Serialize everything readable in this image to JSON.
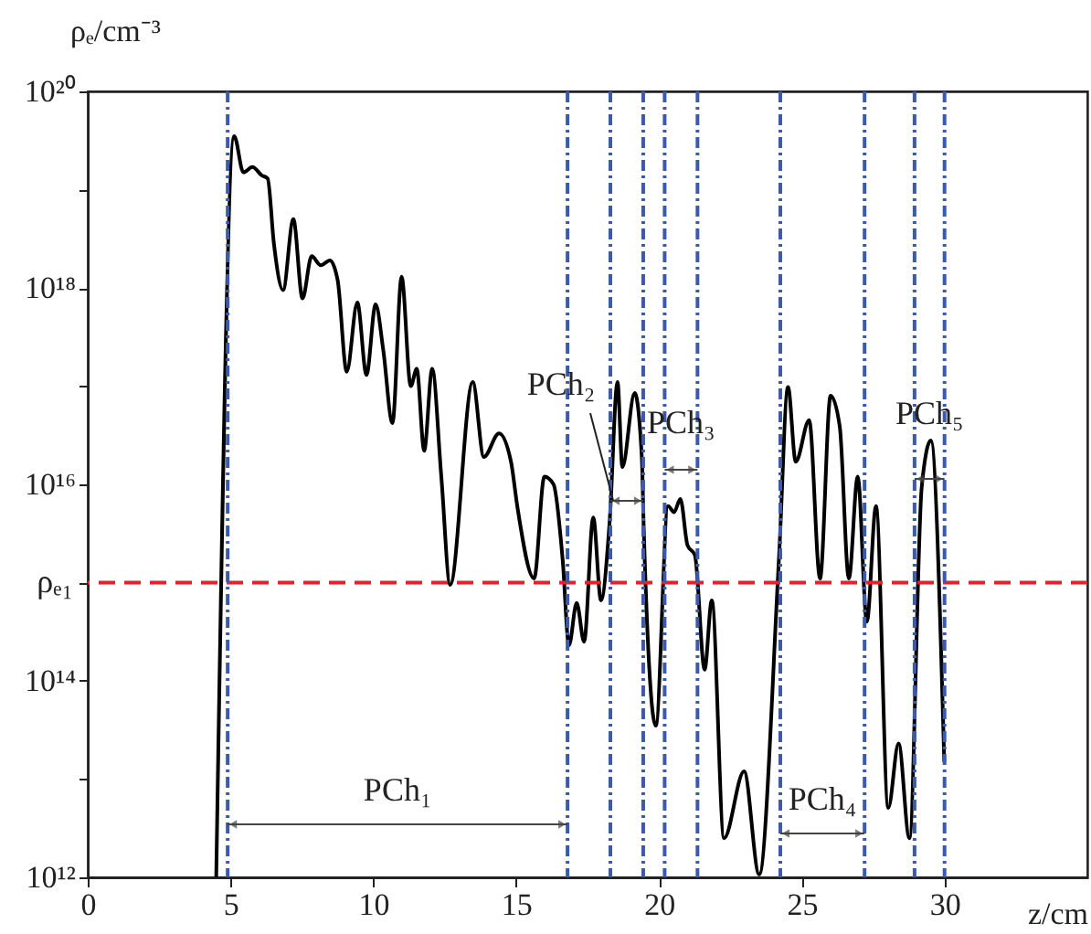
{
  "chart_data": {
    "type": "line",
    "xlabel": "z/cm",
    "ylabel": "ρₑ/cm⁻³",
    "log": "y",
    "grid": false,
    "xlim": [
      0,
      35
    ],
    "ylim": [
      1000000000000.0,
      1e+20
    ],
    "xticks": [
      0,
      5,
      10,
      15,
      20,
      25,
      30
    ],
    "yticks": [
      {
        "value": 1000000000000.0,
        "label": "10¹²"
      },
      {
        "value": 10000000000000.0,
        "label": null
      },
      {
        "value": 100000000000000.0,
        "label": "10¹⁴"
      },
      {
        "value": 1000000000000000.0,
        "label": null
      },
      {
        "value": 1e+16,
        "label": "10¹⁶"
      },
      {
        "value": 1e+17,
        "label": null
      },
      {
        "value": 1e+18,
        "label": "10¹⁸"
      },
      {
        "value": 1e+19,
        "label": null
      },
      {
        "value": 1e+20,
        "label": "10²⁰"
      }
    ],
    "x": [
      4.5,
      5.13,
      5.45,
      5.77,
      6.09,
      6.3,
      6.52,
      6.84,
      7.2,
      7.52,
      7.84,
      8.16,
      8.48,
      8.75,
      9.07,
      9.44,
      9.76,
      10.08,
      10.35,
      10.67,
      10.99,
      11.31,
      11.52,
      11.78,
      12.06,
      12.38,
      12.69,
      13.48,
      13.87,
      14.4,
      14.82,
      15.04,
      15.63,
      15.99,
      16.31,
      16.63,
      16.85,
      17.12,
      17.38,
      17.7,
      17.97,
      18.27,
      18.55,
      18.72,
      19.15,
      19.4,
      19.47,
      19.89,
      20.32,
      20.53,
      20.75,
      21.0,
      21.26,
      21.6,
      21.85,
      22.28,
      22.98,
      23.51,
      24.2,
      24.52,
      24.79,
      25.26,
      25.64,
      26.01,
      26.33,
      26.65,
      26.96,
      27.28,
      27.6,
      28.03,
      28.39,
      28.77,
      29.2,
      29.52,
      29.99
    ],
    "series": [
      {
        "color": "#000000",
        "values": [
          1000000000000.0,
          3.5e+19,
          1.5e+19,
          1.7e+19,
          1.4e+19,
          1.3e+19,
          2.8e+18,
          9.5e+17,
          5e+18,
          7.8e+17,
          2.1e+18,
          1.7e+18,
          1.9e+18,
          1.2e+18,
          1.4e+17,
          7.1e+17,
          1.3e+17,
          6.8e+17,
          2.3e+17,
          4.2e+16,
          1.3e+18,
          1e+17,
          1.5e+17,
          2.2e+16,
          1.5e+17,
          1.2e+16,
          950000000000000.0,
          1.1e+17,
          1.9e+16,
          3.3e+16,
          1.7e+16,
          6000000000000000.0,
          1100000000000000.0,
          1.2e+16,
          1e+16,
          1700000000000000.0,
          230000000000000.0,
          620000000000000.0,
          250000000000000.0,
          4600000000000000.0,
          660000000000000.0,
          4000000000000000.0,
          1.1e+17,
          1.5e+16,
          8.5e+16,
          1.9e+16,
          3400000000000000.0,
          35000000000000.0,
          6000000000000000.0,
          5200000000000000.0,
          7100000000000000.0,
          2400000000000000.0,
          1900000000000000.0,
          130000000000000.0,
          660000000000000.0,
          2500000000000.0,
          12000000000000.0,
          1070000000000.0,
          1700000000000000.0,
          9.8e+16,
          1.7e+16,
          4.5e+16,
          1100000000000000.0,
          8e+16,
          3.9e+16,
          1100000000000000.0,
          1.2e+16,
          400000000000000.0,
          6000000000000000.0,
          5100000000000.0,
          23000000000000.0,
          2500000000000.0,
          9300000000000000.0,
          2.8e+16,
          15000000000000.0
        ]
      }
    ],
    "ref_lines": [
      {
        "axis": "y",
        "value": 1000000000000000.0,
        "label": "ρₑ₁",
        "color": "#e8202a",
        "line_style": "dashed"
      },
      {
        "axis": "x",
        "value": 4.9,
        "color": "#3b5ba9",
        "line_style": "dotted"
      },
      {
        "axis": "x",
        "value": 16.8,
        "color": "#3b5ba9",
        "line_style": "dotted"
      },
      {
        "axis": "x",
        "value": 18.3,
        "color": "#3b5ba9",
        "line_style": "dotted"
      },
      {
        "axis": "x",
        "value": 19.45,
        "color": "#3b5ba9",
        "line_style": "dotted"
      },
      {
        "axis": "x",
        "value": 20.2,
        "color": "#3b5ba9",
        "line_style": "dotted"
      },
      {
        "axis": "x",
        "value": 21.35,
        "color": "#3b5ba9",
        "line_style": "dotted"
      },
      {
        "axis": "x",
        "value": 24.25,
        "color": "#3b5ba9",
        "line_style": "dotted"
      },
      {
        "axis": "x",
        "value": 27.2,
        "color": "#3b5ba9",
        "line_style": "dotted"
      },
      {
        "axis": "x",
        "value": 28.95,
        "color": "#3b5ba9",
        "line_style": "dotted"
      },
      {
        "axis": "x",
        "value": 30.0,
        "color": "#3b5ba9",
        "line_style": "dotted"
      }
    ],
    "annotations": [
      "PCh₁",
      {
        "text": "PCh₂",
        "x": 18.4,
        "y": 6800000000000000.0
      },
      "PCh₃",
      "PCh₄",
      "PCh₅"
    ]
  }
}
